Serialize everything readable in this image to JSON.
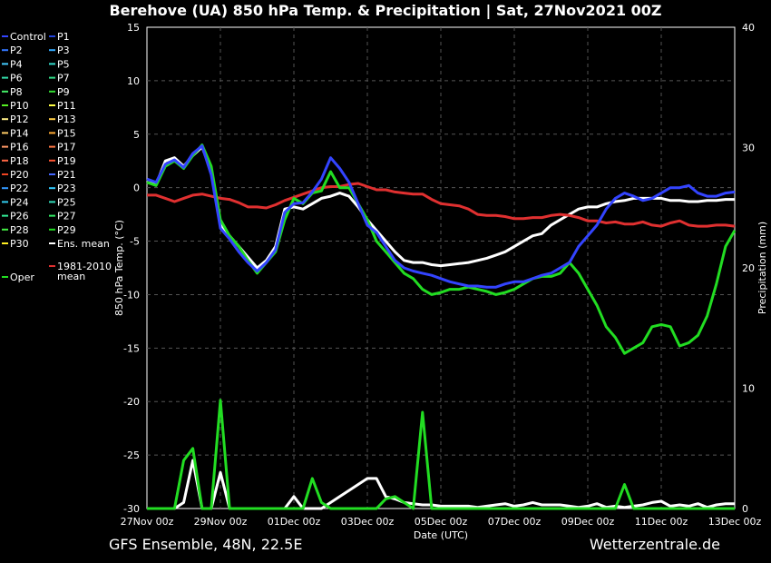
{
  "page": {
    "title": "Berehove  (UA)  850 hPa Temp. & Precipitation | Sat, 27Nov2021 00Z",
    "footer_left": "GFS Ensemble, 48N, 22.5E",
    "footer_right": "Wetterzentrale.de"
  },
  "colors": {
    "background": "#000000",
    "grid": "#555555",
    "ens_mean": "#ffffff",
    "oper": "#22dd22",
    "climo": "#e03030",
    "control": "#3344ff"
  },
  "chart_data": {
    "type": "line",
    "ylabel": "850 hPa Temp. (°C)",
    "y2label": "Precipitation (mm)",
    "xlabel": "Date (UTC)",
    "ylim": [
      -30,
      15
    ],
    "y2lim": [
      0,
      40
    ],
    "yticks": [
      15,
      10,
      5,
      0,
      -5,
      -10,
      -15,
      -20,
      -25,
      -30
    ],
    "y2ticks": [
      40,
      30,
      20,
      10,
      0
    ],
    "xtick_labels": [
      "27Nov 00z",
      "29Nov 00z",
      "01Dec 00z",
      "03Dec 00z",
      "05Dec 00z",
      "07Dec 00z",
      "09Dec 00z",
      "11Dec 00z",
      "13Dec 00z"
    ],
    "grid": true,
    "legend": {
      "placement": "left",
      "entries": [
        {
          "label": "Control",
          "color": "#3344ff"
        },
        {
          "label": "P1",
          "color": "#2244dd"
        },
        {
          "label": "P2",
          "color": "#3377ff"
        },
        {
          "label": "P3",
          "color": "#33aaff"
        },
        {
          "label": "P4",
          "color": "#44ccff"
        },
        {
          "label": "P5",
          "color": "#33ddcc"
        },
        {
          "label": "P6",
          "color": "#33ddaa"
        },
        {
          "label": "P7",
          "color": "#33dd88"
        },
        {
          "label": "P8",
          "color": "#44ee66"
        },
        {
          "label": "P9",
          "color": "#33dd33"
        },
        {
          "label": "P10",
          "color": "#55ee22"
        },
        {
          "label": "P11",
          "color": "#ffff44"
        },
        {
          "label": "P12",
          "color": "#ffee88"
        },
        {
          "label": "P13",
          "color": "#ffcc44"
        },
        {
          "label": "P14",
          "color": "#ffcc66"
        },
        {
          "label": "P15",
          "color": "#ffaa33"
        },
        {
          "label": "P16",
          "color": "#ff9966"
        },
        {
          "label": "P17",
          "color": "#ff7744"
        },
        {
          "label": "P18",
          "color": "#ff6644"
        },
        {
          "label": "P19",
          "color": "#ff5533"
        },
        {
          "label": "P20",
          "color": "#ee4422"
        },
        {
          "label": "P21",
          "color": "#4466ff"
        },
        {
          "label": "P22",
          "color": "#3399ff"
        },
        {
          "label": "P23",
          "color": "#33ccff"
        },
        {
          "label": "P24",
          "color": "#33ccee"
        },
        {
          "label": "P25",
          "color": "#33ddbb"
        },
        {
          "label": "P26",
          "color": "#33ee99"
        },
        {
          "label": "P27",
          "color": "#33ee66"
        },
        {
          "label": "P28",
          "color": "#44ee44"
        },
        {
          "label": "P29",
          "color": "#22dd22"
        },
        {
          "label": "P30",
          "color": "#ffee22"
        },
        {
          "label": "Ens. mean",
          "color": "#ffffff"
        },
        {
          "label": "1981-2010 mean",
          "color": "#e03030"
        },
        {
          "label": "Oper",
          "color": "#22dd22"
        }
      ]
    },
    "x_days": [
      0,
      0.25,
      0.5,
      0.75,
      1,
      1.25,
      1.5,
      1.75,
      2,
      2.25,
      2.5,
      2.75,
      3,
      3.25,
      3.5,
      3.75,
      4,
      4.25,
      4.5,
      4.75,
      5,
      5.25,
      5.5,
      5.75,
      6,
      6.25,
      6.5,
      6.75,
      7,
      7.25,
      7.5,
      7.75,
      8,
      8.25,
      8.5,
      8.75,
      9,
      9.25,
      9.5,
      9.75,
      10,
      10.25,
      10.5,
      10.75,
      11,
      11.25,
      11.5,
      11.75,
      12,
      12.25,
      12.5,
      12.75,
      13,
      13.25,
      13.5,
      13.75,
      14,
      14.25,
      14.5,
      14.75,
      15,
      15.25,
      15.5,
      15.75,
      16
    ],
    "temp_series": [
      {
        "name": "Ens. mean",
        "color": "#ffffff",
        "width": 3,
        "values": [
          0.5,
          0.3,
          2.5,
          2.8,
          2,
          3,
          3.8,
          1.5,
          -3.5,
          -4.5,
          -5.5,
          -6.5,
          -7.5,
          -6.8,
          -5.5,
          -2,
          -1.8,
          -2,
          -1.5,
          -1,
          -0.8,
          -0.5,
          -0.8,
          -1.8,
          -3,
          -4,
          -5,
          -6,
          -6.8,
          -7,
          -7,
          -7.2,
          -7.3,
          -7.2,
          -7.1,
          -7,
          -6.8,
          -6.6,
          -6.3,
          -6,
          -5.5,
          -5,
          -4.5,
          -4.3,
          -3.5,
          -3,
          -2.5,
          -2,
          -1.8,
          -1.8,
          -1.5,
          -1.3,
          -1.2,
          -1,
          -1,
          -1,
          -1,
          -1.2,
          -1.2,
          -1.3,
          -1.3,
          -1.2,
          -1.2,
          -1.1,
          -1.1
        ]
      },
      {
        "name": "1981-2010 mean",
        "color": "#e03030",
        "width": 3,
        "values": [
          -0.7,
          -0.7,
          -1,
          -1.3,
          -1,
          -0.7,
          -0.6,
          -0.8,
          -1,
          -1.1,
          -1.4,
          -1.8,
          -1.8,
          -1.9,
          -1.6,
          -1.2,
          -0.9,
          -0.6,
          -0.3,
          0,
          0.1,
          0.1,
          0.3,
          0.4,
          0.1,
          -0.2,
          -0.2,
          -0.4,
          -0.5,
          -0.6,
          -0.6,
          -1.1,
          -1.5,
          -1.6,
          -1.7,
          -2,
          -2.5,
          -2.6,
          -2.6,
          -2.7,
          -2.9,
          -2.9,
          -2.8,
          -2.8,
          -2.6,
          -2.5,
          -2.6,
          -2.8,
          -3.1,
          -3.1,
          -3.3,
          -3.2,
          -3.4,
          -3.4,
          -3.2,
          -3.5,
          -3.6,
          -3.3,
          -3.1,
          -3.5,
          -3.6,
          -3.6,
          -3.5,
          -3.5,
          -3.6
        ]
      },
      {
        "name": "Oper",
        "color": "#22dd22",
        "width": 3,
        "values": [
          0.5,
          0.2,
          2,
          2.5,
          1.8,
          3,
          4,
          2,
          -3,
          -4.5,
          -5.5,
          -6.8,
          -8,
          -7,
          -6,
          -3,
          -1,
          -1.5,
          -0.5,
          -0.3,
          1.5,
          0,
          0,
          -1.5,
          -3,
          -5,
          -6,
          -7,
          -8,
          -8.5,
          -9.5,
          -10,
          -9.8,
          -9.5,
          -9.5,
          -9.3,
          -9.5,
          -9.7,
          -10,
          -9.8,
          -9.5,
          -9,
          -8.5,
          -8.3,
          -8.3,
          -8,
          -7,
          -8,
          -9.5,
          -11,
          -13,
          -14,
          -15.5,
          -15,
          -14.5,
          -13,
          -12.8,
          -13,
          -14.8,
          -14.5,
          -13.8,
          -12,
          -9,
          -5.5,
          -4
        ]
      },
      {
        "name": "Control",
        "color": "#3344ff",
        "width": 3,
        "values": [
          0.8,
          0.5,
          2.2,
          2.6,
          1.9,
          3.2,
          3.9,
          1.2,
          -3.8,
          -4.8,
          -6,
          -7,
          -7.8,
          -7,
          -5.8,
          -2.3,
          -1.5,
          -1.4,
          -0.4,
          0.8,
          2.8,
          1.8,
          0.5,
          -1.5,
          -3.5,
          -4.2,
          -5.5,
          -6.8,
          -7.5,
          -7.8,
          -8,
          -8.2,
          -8.5,
          -8.8,
          -9,
          -9.2,
          -9.2,
          -9.3,
          -9.3,
          -9,
          -8.8,
          -8.8,
          -8.5,
          -8.2,
          -8,
          -7.5,
          -7,
          -5.5,
          -4.5,
          -3.5,
          -2,
          -1,
          -0.5,
          -0.8,
          -1.2,
          -1,
          -0.5,
          0,
          0,
          0.2,
          -0.5,
          -0.8,
          -0.8,
          -0.5,
          -0.4
        ]
      }
    ],
    "precip_series": [
      {
        "name": "Ens. mean",
        "color": "#ffffff",
        "width": 3,
        "values": [
          0,
          0,
          0,
          0,
          0.5,
          4,
          0,
          0,
          3,
          0,
          0,
          0,
          0,
          0,
          0,
          0,
          1,
          0,
          0,
          0,
          0.5,
          1,
          1.5,
          2,
          2.5,
          2.5,
          1,
          0.8,
          0.5,
          0.4,
          0.3,
          0.3,
          0.2,
          0.2,
          0.2,
          0.2,
          0.1,
          0.2,
          0.3,
          0.4,
          0.2,
          0.3,
          0.5,
          0.3,
          0.3,
          0.3,
          0.2,
          0.1,
          0.2,
          0.4,
          0.1,
          0.2,
          0.1,
          0.2,
          0.3,
          0.5,
          0.6,
          0.2,
          0.3,
          0.2,
          0.4,
          0.1,
          0.3,
          0.4,
          0.4
        ]
      },
      {
        "name": "Oper",
        "color": "#22dd22",
        "width": 3,
        "values": [
          0,
          0,
          0,
          0,
          4,
          5,
          0,
          0,
          9,
          0,
          0,
          0,
          0,
          0,
          0,
          0,
          0,
          0,
          2.5,
          0.5,
          0,
          0,
          0,
          0,
          0,
          0,
          0.8,
          1,
          0.5,
          0,
          8,
          0,
          0,
          0,
          0,
          0,
          0,
          0,
          0,
          0,
          0,
          0,
          0,
          0,
          0,
          0,
          0,
          0,
          0,
          0,
          0,
          0,
          2,
          0,
          0,
          0,
          0,
          0,
          0,
          0,
          0,
          0,
          0,
          0,
          0
        ]
      }
    ]
  }
}
